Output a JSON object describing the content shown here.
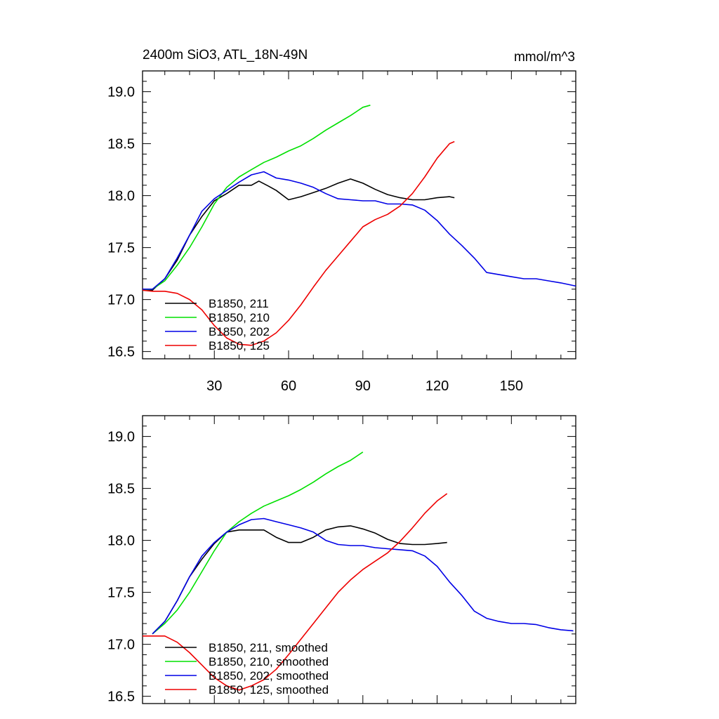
{
  "figure": {
    "title_left": "2400m SiO3, ATL_18N-49N",
    "title_right": "mmol/m^3"
  },
  "colors": {
    "black": "#000000",
    "green": "#00e000",
    "blue": "#0000e6",
    "red": "#ee0000"
  },
  "chart_data": [
    {
      "type": "line",
      "title": "2400m SiO3, ATL_18N-49N",
      "units": "mmol/m^3",
      "xlim": [
        1,
        176
      ],
      "ylim": [
        16.43,
        19.2
      ],
      "xticks": [
        30,
        60,
        90,
        120,
        150
      ],
      "xtick_labels": [
        "30",
        "60",
        "90",
        "120",
        "150"
      ],
      "yticks": [
        16.5,
        17.0,
        17.5,
        18.0,
        18.5,
        19.0
      ],
      "ytick_labels": [
        "16.5",
        "17.0",
        "17.5",
        "18.0",
        "18.5",
        "19.0"
      ],
      "legend_position": "bottom-left",
      "grid": false,
      "series": [
        {
          "name": "B1850, 211",
          "color": "#000000",
          "x": [
            1,
            5,
            10,
            15,
            20,
            25,
            30,
            35,
            40,
            45,
            48,
            52,
            55,
            60,
            65,
            70,
            75,
            80,
            85,
            90,
            95,
            100,
            105,
            110,
            115,
            120,
            125,
            127
          ],
          "y": [
            17.09,
            17.09,
            17.2,
            17.38,
            17.62,
            17.8,
            17.95,
            18.02,
            18.1,
            18.1,
            18.14,
            18.09,
            18.05,
            17.96,
            17.99,
            18.03,
            18.07,
            18.12,
            18.16,
            18.12,
            18.06,
            18.01,
            17.98,
            17.96,
            17.96,
            17.98,
            17.99,
            17.98
          ]
        },
        {
          "name": "B1850, 210",
          "color": "#00e000",
          "x": [
            1,
            5,
            10,
            15,
            20,
            25,
            30,
            35,
            40,
            45,
            50,
            55,
            60,
            65,
            70,
            75,
            80,
            85,
            90,
            93
          ],
          "y": [
            17.09,
            17.1,
            17.18,
            17.33,
            17.5,
            17.7,
            17.92,
            18.08,
            18.18,
            18.25,
            18.32,
            18.37,
            18.43,
            18.48,
            18.55,
            18.63,
            18.7,
            18.77,
            18.85,
            18.87
          ]
        },
        {
          "name": "B1850, 202",
          "color": "#0000e6",
          "x": [
            1,
            5,
            10,
            15,
            20,
            25,
            30,
            35,
            40,
            45,
            50,
            55,
            60,
            65,
            70,
            75,
            80,
            85,
            90,
            95,
            100,
            105,
            110,
            115,
            120,
            125,
            130,
            135,
            140,
            145,
            150,
            155,
            160,
            165,
            170,
            176
          ],
          "y": [
            17.1,
            17.1,
            17.2,
            17.4,
            17.62,
            17.85,
            17.97,
            18.05,
            18.13,
            18.2,
            18.23,
            18.17,
            18.15,
            18.12,
            18.08,
            18.02,
            17.97,
            17.96,
            17.95,
            17.95,
            17.92,
            17.92,
            17.91,
            17.86,
            17.76,
            17.63,
            17.52,
            17.4,
            17.26,
            17.24,
            17.22,
            17.2,
            17.2,
            17.18,
            17.16,
            17.13
          ]
        },
        {
          "name": "B1850, 125",
          "color": "#ee0000",
          "x": [
            1,
            5,
            10,
            15,
            20,
            25,
            30,
            35,
            40,
            45,
            50,
            55,
            60,
            65,
            70,
            75,
            80,
            85,
            90,
            95,
            100,
            105,
            110,
            115,
            120,
            125,
            127
          ],
          "y": [
            17.09,
            17.08,
            17.08,
            17.06,
            17.0,
            16.9,
            16.75,
            16.63,
            16.57,
            16.56,
            16.6,
            16.68,
            16.8,
            16.95,
            17.12,
            17.28,
            17.42,
            17.56,
            17.7,
            17.77,
            17.82,
            17.9,
            18.02,
            18.18,
            18.36,
            18.5,
            18.52
          ]
        }
      ]
    },
    {
      "type": "line",
      "xlim": [
        1,
        176
      ],
      "ylim": [
        16.43,
        19.2
      ],
      "xticks": [
        30,
        60,
        90,
        120,
        150
      ],
      "yticks": [
        16.5,
        17.0,
        17.5,
        18.0,
        18.5,
        19.0
      ],
      "ytick_labels": [
        "16.5",
        "17.0",
        "17.5",
        "18.0",
        "18.5",
        "19.0"
      ],
      "legend_position": "bottom-left",
      "grid": false,
      "series": [
        {
          "name": "B1850, 211, smoothed",
          "color": "#000000",
          "x": [
            5,
            10,
            15,
            20,
            25,
            30,
            35,
            40,
            45,
            50,
            55,
            60,
            65,
            70,
            75,
            80,
            85,
            90,
            95,
            100,
            105,
            110,
            115,
            120,
            124
          ],
          "y": [
            17.1,
            17.22,
            17.42,
            17.65,
            17.82,
            17.97,
            18.08,
            18.1,
            18.1,
            18.1,
            18.03,
            17.98,
            17.98,
            18.03,
            18.1,
            18.13,
            18.14,
            18.11,
            18.07,
            18.01,
            17.97,
            17.96,
            17.96,
            17.97,
            17.98
          ]
        },
        {
          "name": "B1850, 210, smoothed",
          "color": "#00e000",
          "x": [
            5,
            10,
            15,
            20,
            25,
            30,
            35,
            40,
            45,
            50,
            55,
            60,
            65,
            70,
            75,
            80,
            85,
            90
          ],
          "y": [
            17.1,
            17.2,
            17.33,
            17.5,
            17.7,
            17.9,
            18.08,
            18.18,
            18.26,
            18.33,
            18.38,
            18.43,
            18.49,
            18.56,
            18.64,
            18.71,
            18.77,
            18.85
          ]
        },
        {
          "name": "B1850, 202, smoothed",
          "color": "#0000e6",
          "x": [
            5,
            10,
            15,
            20,
            25,
            30,
            35,
            40,
            45,
            50,
            55,
            60,
            65,
            70,
            75,
            80,
            85,
            90,
            95,
            100,
            105,
            110,
            115,
            120,
            125,
            130,
            135,
            140,
            145,
            150,
            155,
            160,
            165,
            170,
            175
          ],
          "y": [
            17.1,
            17.22,
            17.42,
            17.65,
            17.85,
            17.98,
            18.08,
            18.15,
            18.2,
            18.21,
            18.18,
            18.15,
            18.12,
            18.08,
            18.0,
            17.96,
            17.95,
            17.95,
            17.93,
            17.92,
            17.91,
            17.9,
            17.85,
            17.75,
            17.6,
            17.47,
            17.32,
            17.25,
            17.22,
            17.2,
            17.2,
            17.19,
            17.16,
            17.14,
            17.13
          ]
        },
        {
          "name": "B1850, 125, smoothed",
          "color": "#ee0000",
          "x": [
            1,
            5,
            10,
            15,
            20,
            25,
            30,
            35,
            40,
            45,
            50,
            55,
            60,
            65,
            70,
            75,
            80,
            85,
            90,
            95,
            100,
            105,
            110,
            115,
            120,
            124
          ],
          "y": [
            17.08,
            17.08,
            17.08,
            17.02,
            16.92,
            16.8,
            16.68,
            16.6,
            16.56,
            16.6,
            16.66,
            16.76,
            16.9,
            17.05,
            17.2,
            17.35,
            17.5,
            17.62,
            17.72,
            17.8,
            17.88,
            17.99,
            18.12,
            18.26,
            18.38,
            18.45
          ]
        }
      ]
    }
  ]
}
